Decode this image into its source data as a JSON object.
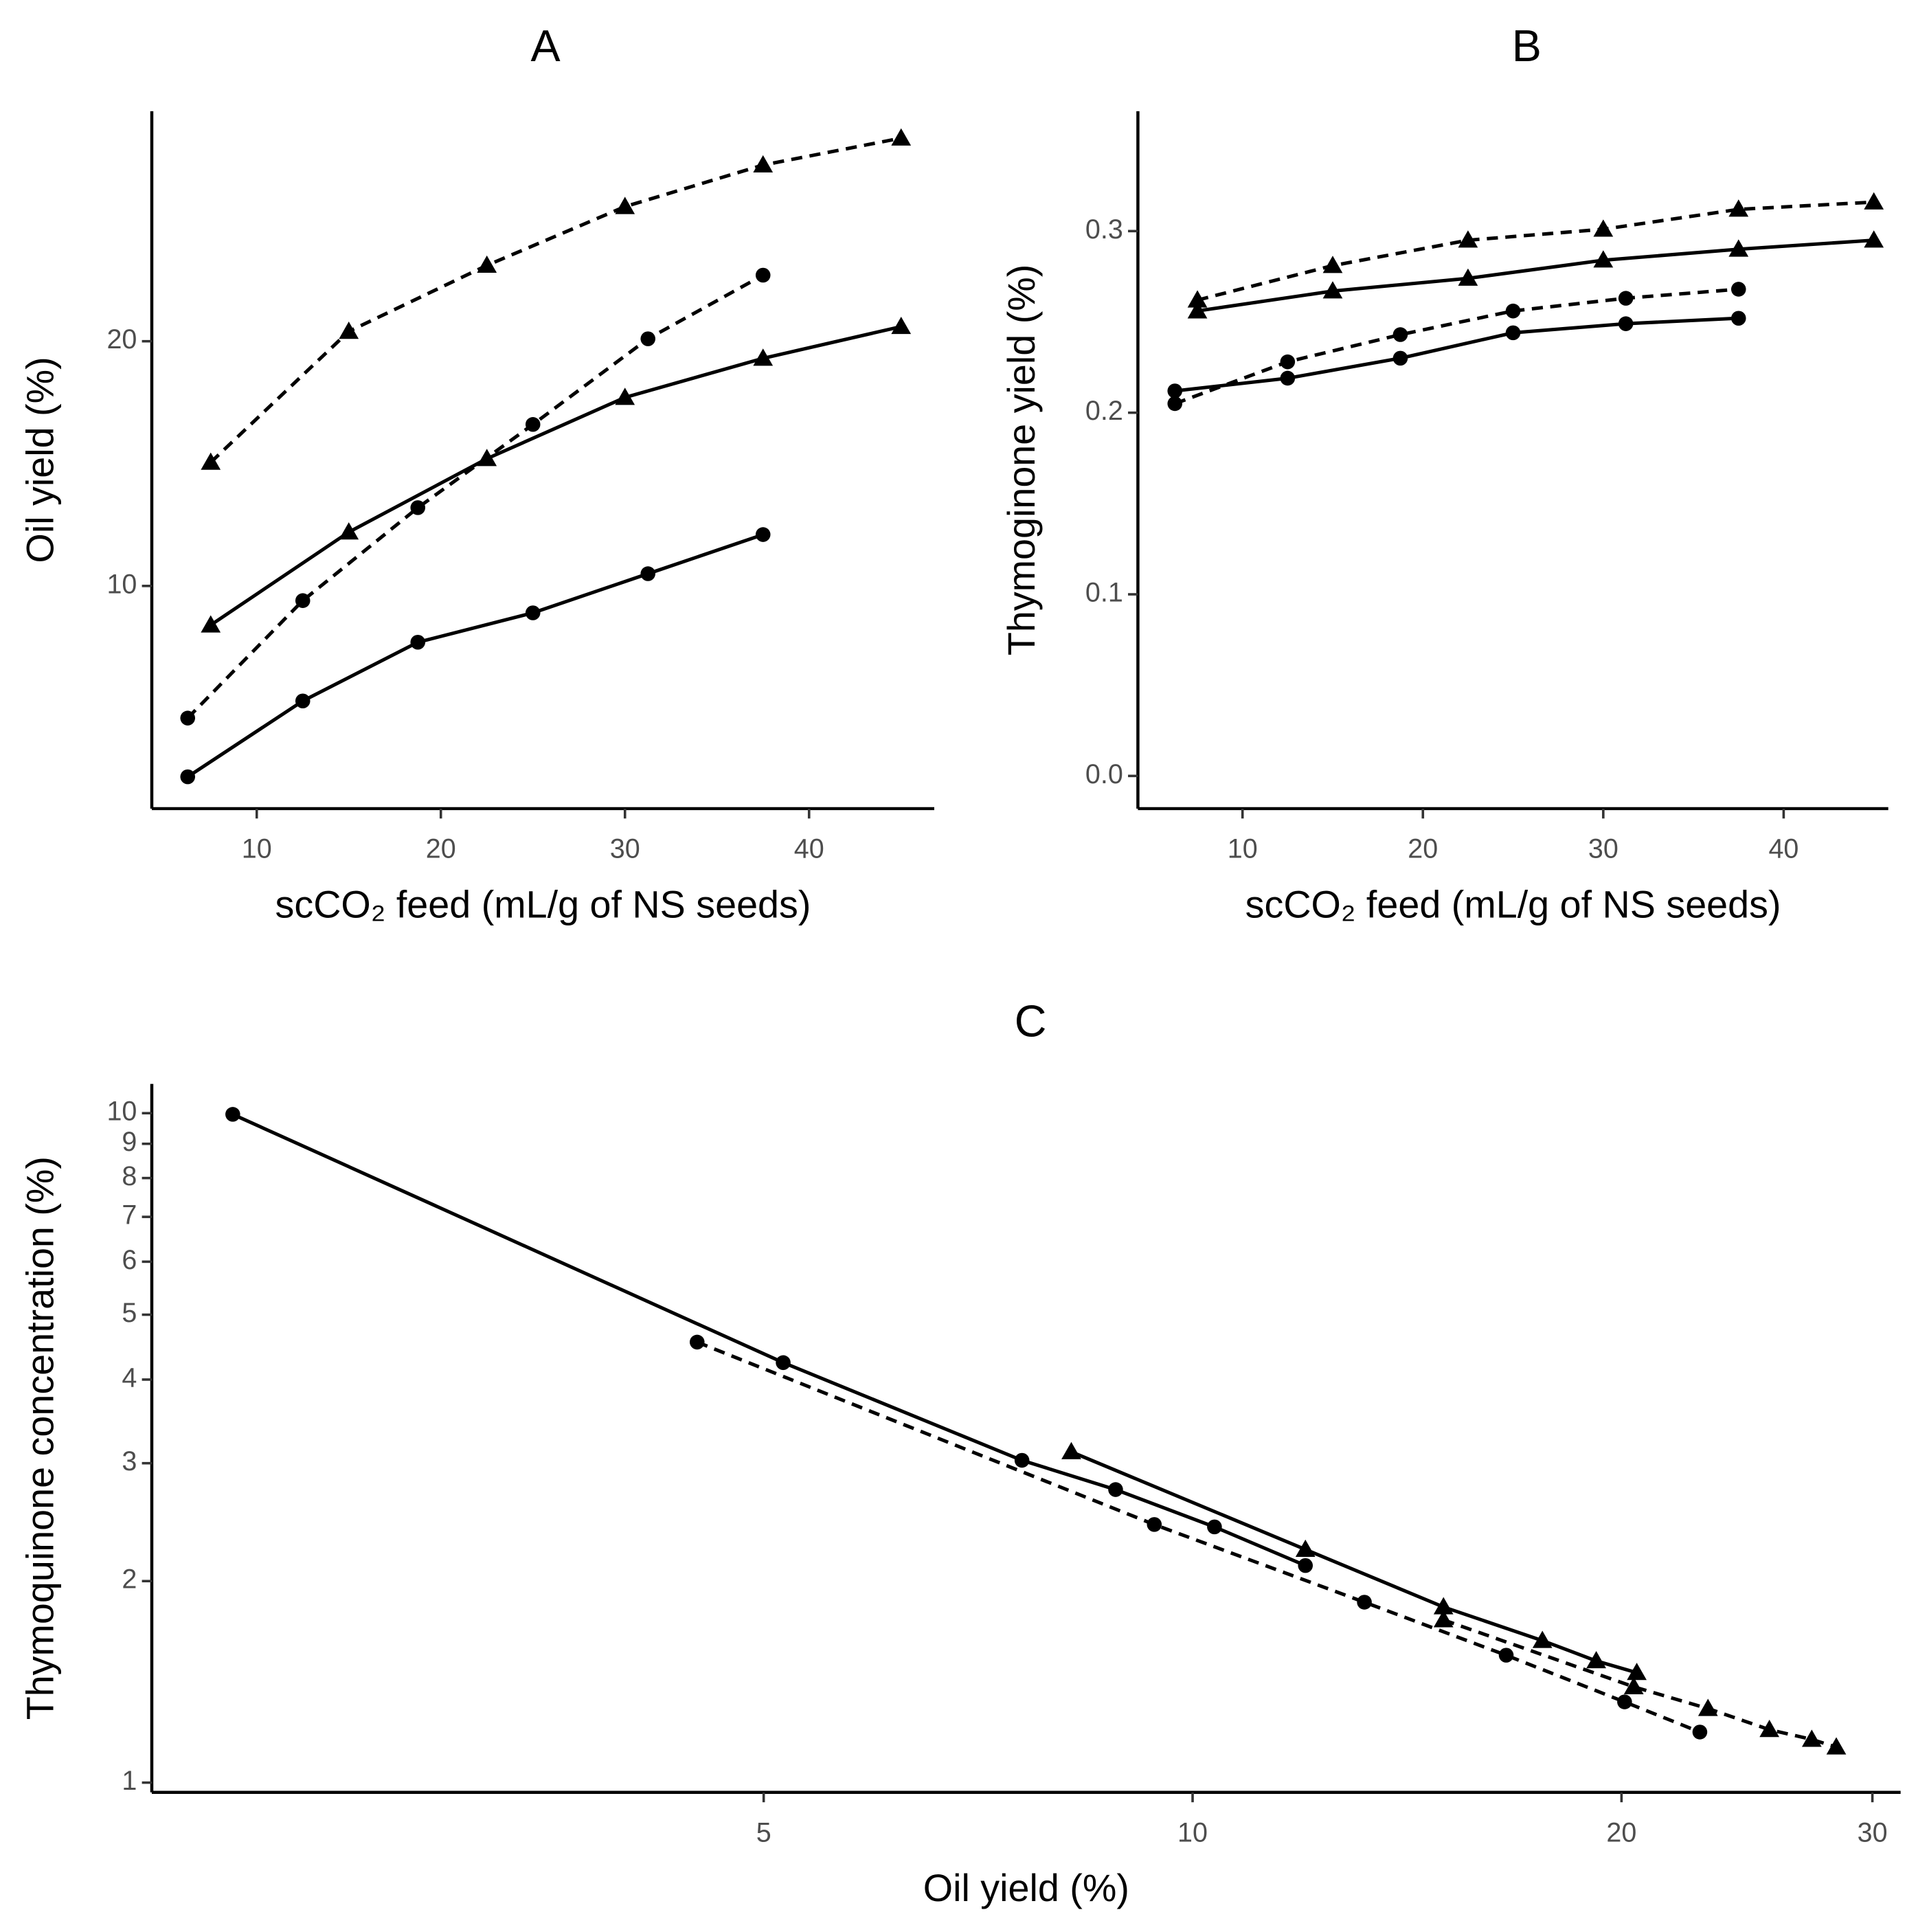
{
  "chart_data": [
    {
      "type": "line",
      "title": "A",
      "xlabel": "scCO₂ feed (mL/g of NS seeds)",
      "ylabel": "Oil yield (%)",
      "xlim": [
        4.3,
        46.8
      ],
      "xticks": [
        10,
        20,
        30,
        40
      ],
      "ylim": [
        0.9,
        29.4
      ],
      "yticks": [
        10,
        20
      ],
      "series": [
        {
          "color": "#000000",
          "line": "dashed",
          "marker": "triangle",
          "x": [
            7.5,
            15,
            22.5,
            30,
            37.5,
            45
          ],
          "values": [
            15.05,
            20.4,
            23.1,
            25.5,
            27.2,
            28.3
          ]
        },
        {
          "color": "#000000",
          "line": "solid",
          "marker": "triangle",
          "x": [
            7.5,
            15,
            22.5,
            30,
            37.5,
            45
          ],
          "values": [
            8.4,
            12.2,
            15.2,
            17.7,
            19.3,
            20.6
          ]
        },
        {
          "color": "#000000",
          "line": "dashed",
          "marker": "circle",
          "x": [
            6.25,
            12.5,
            18.75,
            25,
            31.25,
            37.5
          ],
          "values": [
            4.6,
            9.4,
            13.2,
            16.6,
            20.1,
            22.7
          ]
        },
        {
          "color": "#000000",
          "line": "solid",
          "marker": "circle",
          "x": [
            6.25,
            12.5,
            18.75,
            25,
            31.25,
            37.5
          ],
          "values": [
            2.2,
            5.3,
            7.7,
            8.9,
            10.5,
            12.1
          ]
        }
      ]
    },
    {
      "type": "line",
      "title": "B",
      "xlabel": "scCO₂ feed (mL/g of NS seeds)",
      "ylabel": "Thymoginone yield (%)",
      "xlim": [
        4.2,
        45.8
      ],
      "xticks": [
        10,
        20,
        30,
        40
      ],
      "ylim": [
        -0.018,
        0.366
      ],
      "yticks": [
        {
          "value": 0,
          "label": "0.0"
        },
        0.1,
        0.2,
        0.3
      ],
      "series": [
        {
          "color": "#000000",
          "line": "dashed",
          "marker": "triangle",
          "x": [
            7.5,
            15,
            22.5,
            30,
            37.5,
            45
          ],
          "values": [
            0.262,
            0.281,
            0.295,
            0.301,
            0.312,
            0.316
          ]
        },
        {
          "color": "#000000",
          "line": "solid",
          "marker": "triangle",
          "x": [
            7.5,
            15,
            22.5,
            30,
            37.5,
            45
          ],
          "values": [
            0.256,
            0.267,
            0.274,
            0.284,
            0.29,
            0.295
          ]
        },
        {
          "color": "#000000",
          "line": "dashed",
          "marker": "circle",
          "x": [
            6.25,
            12.5,
            18.75,
            25,
            31.25,
            37.5
          ],
          "values": [
            0.205,
            0.228,
            0.243,
            0.256,
            0.263,
            0.268
          ]
        },
        {
          "color": "#000000",
          "line": "solid",
          "marker": "circle",
          "x": [
            6.25,
            12.5,
            18.75,
            25,
            31.25,
            37.5
          ],
          "values": [
            0.212,
            0.219,
            0.23,
            0.244,
            0.249,
            0.252
          ]
        }
      ]
    },
    {
      "type": "line",
      "title": "C",
      "xlabel": "Oil yield (%)",
      "ylabel": "Thymoquinone concentration (%)",
      "xscale": "log",
      "yscale": "log",
      "xlim": [
        1.86,
        31.4
      ],
      "xticks": [
        5,
        10,
        20,
        30
      ],
      "ylim": [
        0.967,
        11.06
      ],
      "yticks": [
        1,
        2,
        3,
        4,
        5,
        6,
        7,
        8,
        9,
        10
      ],
      "series": [
        {
          "color": "#000000",
          "line": "solid",
          "marker": "circle",
          "x": [
            2.12,
            5.16,
            7.59,
            8.83,
            10.36,
            12.0
          ],
          "values": [
            9.96,
            4.24,
            3.03,
            2.74,
            2.41,
            2.11
          ]
        },
        {
          "color": "#000000",
          "line": "solid",
          "marker": "triangle",
          "x": [
            8.22,
            12.0,
            15.0,
            17.6,
            19.2,
            20.5
          ],
          "values": [
            3.12,
            2.23,
            1.83,
            1.63,
            1.52,
            1.46
          ]
        },
        {
          "color": "#000000",
          "line": "dashed",
          "marker": "circle",
          "x": [
            4.49,
            9.4,
            13.2,
            16.6,
            20.1,
            22.7
          ],
          "values": [
            4.55,
            2.43,
            1.86,
            1.55,
            1.32,
            1.19
          ]
        },
        {
          "color": "#000000",
          "line": "dashed",
          "marker": "triangle",
          "x": [
            15.0,
            20.4,
            23.0,
            25.4,
            27.2,
            28.3
          ],
          "values": [
            1.75,
            1.39,
            1.29,
            1.2,
            1.16,
            1.13
          ]
        }
      ]
    }
  ]
}
